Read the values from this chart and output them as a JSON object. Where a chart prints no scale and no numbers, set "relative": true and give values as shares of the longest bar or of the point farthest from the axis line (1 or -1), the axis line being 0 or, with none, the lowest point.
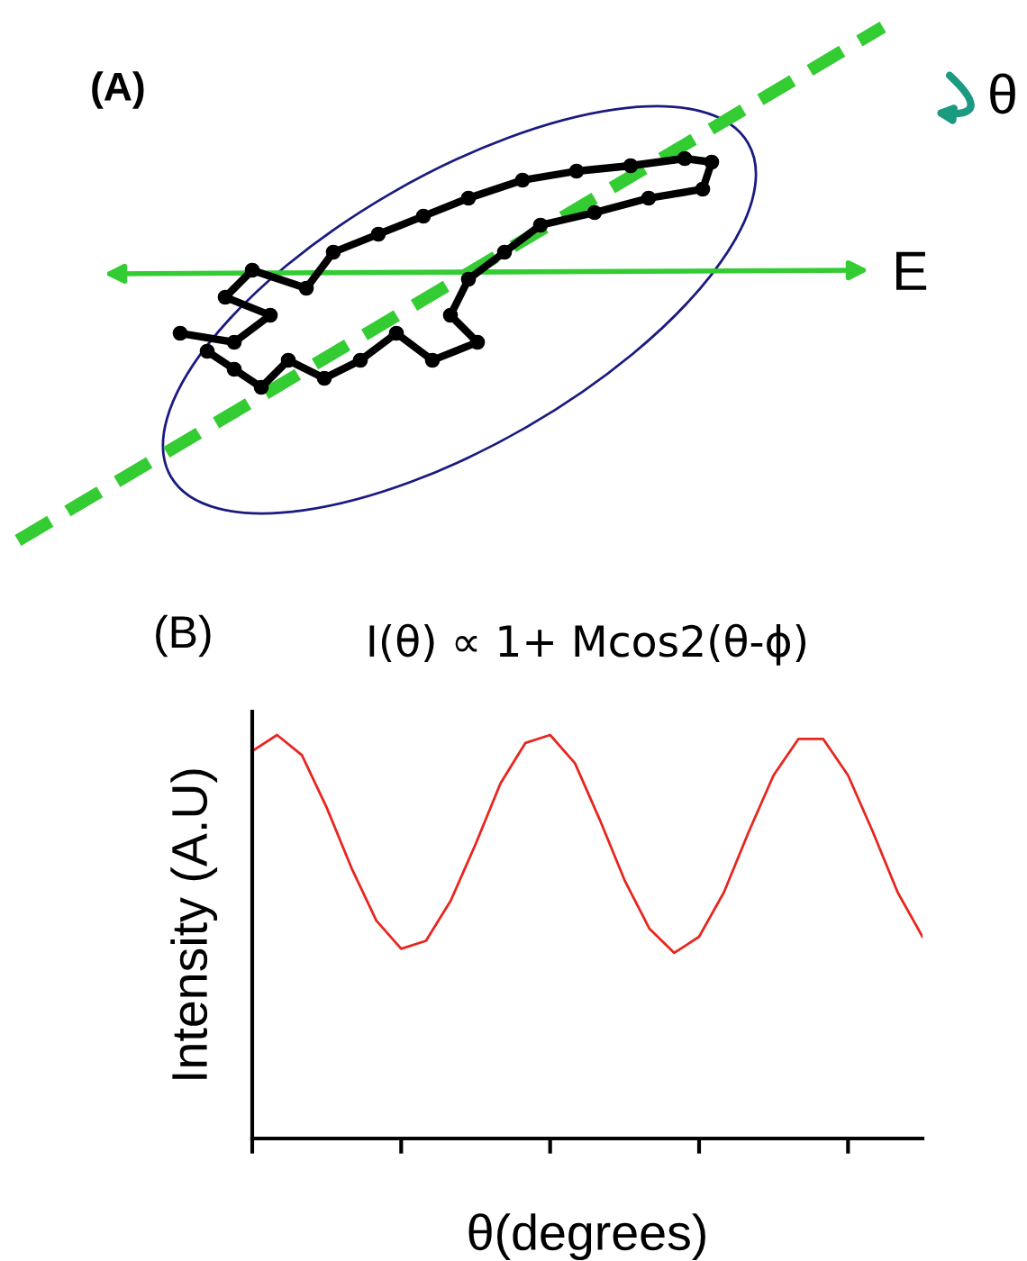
{
  "chart_data": {
    "type": "line",
    "title": "I(θ) ∝ 1+ Mcos2(θ-ϕ)",
    "xlabel": "θ(degrees)",
    "ylabel": "Intensity (A.U)",
    "annotations": [
      "(A)",
      "θ",
      "E",
      "(B)"
    ],
    "relative": true,
    "tick_labels": false,
    "grid": false,
    "legend": false,
    "categories": [
      null,
      null,
      null,
      null,
      null,
      null,
      null,
      null,
      null,
      null,
      null,
      null,
      null,
      null,
      null,
      null,
      null,
      null,
      null,
      null,
      null,
      null,
      null,
      null,
      null,
      null,
      null,
      null
    ],
    "series": [
      {
        "color": "#e8251f",
        "values": [
          0.96,
          1.0,
          0.95,
          0.82,
          0.67,
          0.54,
          0.47,
          0.49,
          0.59,
          0.73,
          0.88,
          0.98,
          1.0,
          0.93,
          0.79,
          0.64,
          0.52,
          0.46,
          0.5,
          0.61,
          0.76,
          0.9,
          0.99,
          0.99,
          0.9,
          0.76,
          0.61,
          0.5
        ]
      }
    ]
  }
}
